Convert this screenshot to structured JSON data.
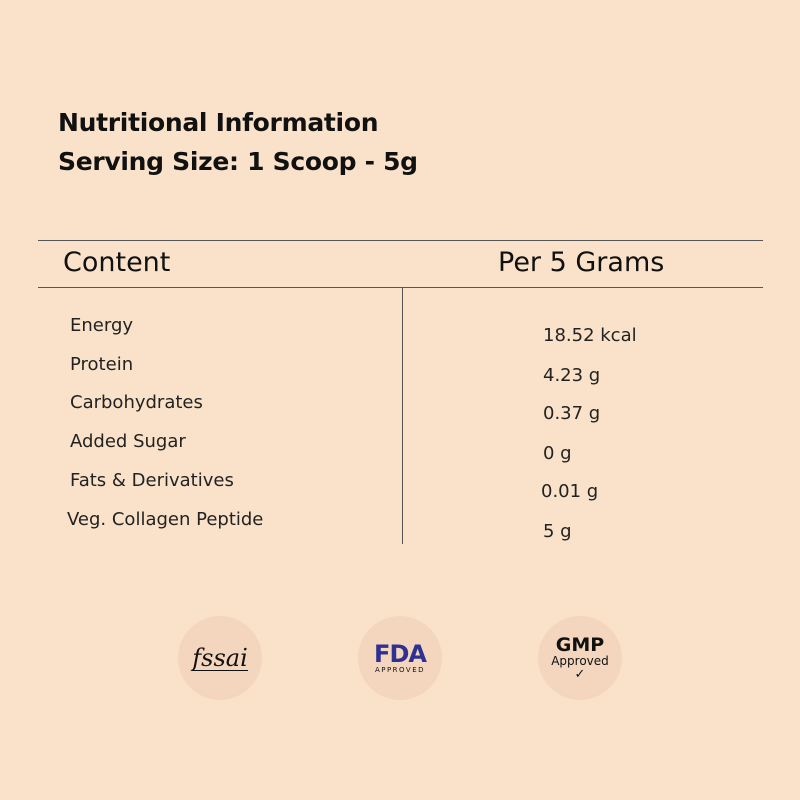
{
  "header": {
    "title": "Nutritional Information",
    "serving": "Serving Size: 1 Scoop - 5g"
  },
  "table": {
    "columns": [
      "Content",
      "Per 5 Grams"
    ],
    "rows": [
      {
        "label": "Energy",
        "value": "18.52 kcal"
      },
      {
        "label": "Protein",
        "value": "4.23 g"
      },
      {
        "label": "Carbohydrates",
        "value": "0.37 g"
      },
      {
        "label": "Added Sugar",
        "value": "0 g"
      },
      {
        "label": "Fats & Derivatives",
        "value": "0.01 g"
      },
      {
        "label": "Veg. Collagen Peptide",
        "value": "5 g"
      }
    ]
  },
  "badges": {
    "fssai": "fssai",
    "fda": "FDA",
    "fda_sub": "APPROVED",
    "gmp": "GMP",
    "gmp_sub": "Approved",
    "fda_color": "#2e3192"
  }
}
